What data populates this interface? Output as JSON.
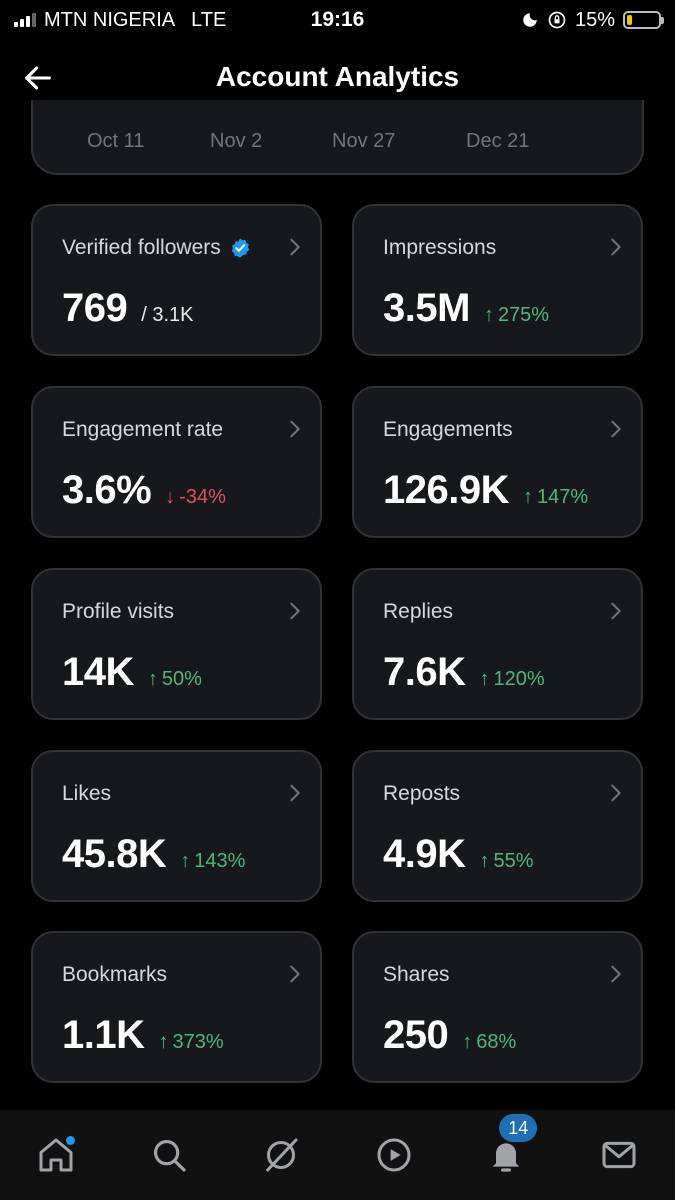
{
  "status_bar": {
    "carrier": "MTN NIGERIA",
    "network": "LTE",
    "time": "19:16",
    "battery": "15%",
    "battery_level": 0.15
  },
  "header": {
    "title": "Account Analytics"
  },
  "date_axis": [
    "Oct 11",
    "Nov 2",
    "Nov 27",
    "Dec 21"
  ],
  "cards": [
    {
      "label": "Verified followers",
      "value": "769",
      "sub": "/ 3.1K",
      "verified": true
    },
    {
      "label": "Impressions",
      "value": "3.5M",
      "arrow": "↑",
      "change": "275%",
      "direction": "up"
    },
    {
      "label": "Engagement rate",
      "value": "3.6%",
      "arrow": "↓",
      "change": "-34%",
      "direction": "down"
    },
    {
      "label": "Engagements",
      "value": "126.9K",
      "arrow": "↑",
      "change": "147%",
      "direction": "up"
    },
    {
      "label": "Profile visits",
      "value": "14K",
      "arrow": "↑",
      "change": "50%",
      "direction": "up"
    },
    {
      "label": "Replies",
      "value": "7.6K",
      "arrow": "↑",
      "change": "120%",
      "direction": "up"
    },
    {
      "label": "Likes",
      "value": "45.8K",
      "arrow": "↑",
      "change": "143%",
      "direction": "up"
    },
    {
      "label": "Reposts",
      "value": "4.9K",
      "arrow": "↑",
      "change": "55%",
      "direction": "up"
    },
    {
      "label": "Bookmarks",
      "value": "1.1K",
      "arrow": "↑",
      "change": "373%",
      "direction": "up"
    },
    {
      "label": "Shares",
      "value": "250",
      "arrow": "↑",
      "change": "68%",
      "direction": "up"
    }
  ],
  "bottom_nav": {
    "items": [
      "home-icon",
      "search-icon",
      "grok-icon",
      "video-icon",
      "notifications-icon",
      "messages-icon"
    ],
    "notifications_badge": "14"
  },
  "colors": {
    "positive": "#4fb67a",
    "negative": "#e0505b",
    "accent": "#1d9bf0",
    "card_bg": "#16181c",
    "card_border": "#2f3336"
  }
}
